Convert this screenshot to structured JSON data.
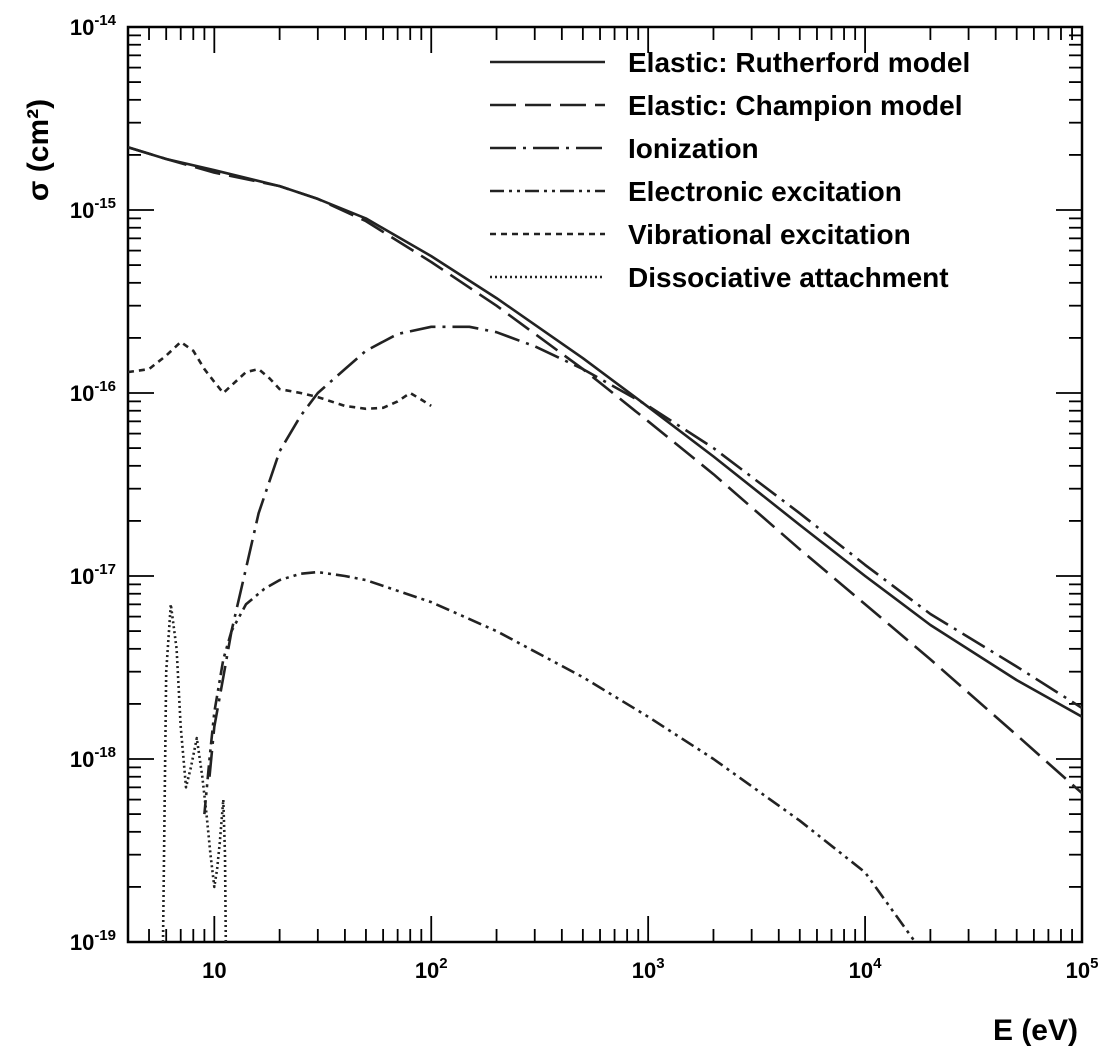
{
  "chart_data": {
    "type": "line",
    "title": "",
    "xlabel": "E (eV)",
    "ylabel": "σ (cm²)",
    "xscale": "log",
    "yscale": "log",
    "xlim": [
      4,
      100000
    ],
    "ylim": [
      1e-19,
      1e-14
    ],
    "grid": false,
    "legend_position": "top-right",
    "x_tick_labels": [
      {
        "value": 10,
        "base": "10",
        "exp": ""
      },
      {
        "value": 100,
        "base": "10",
        "exp": "2"
      },
      {
        "value": 1000,
        "base": "10",
        "exp": "3"
      },
      {
        "value": 10000,
        "base": "10",
        "exp": "4"
      },
      {
        "value": 100000,
        "base": "10",
        "exp": "5"
      }
    ],
    "y_tick_labels": [
      {
        "value": 1e-19,
        "base": "10",
        "exp": "-19"
      },
      {
        "value": 1e-18,
        "base": "10",
        "exp": "-18"
      },
      {
        "value": 1e-17,
        "base": "10",
        "exp": "-17"
      },
      {
        "value": 1e-16,
        "base": "10",
        "exp": "-16"
      },
      {
        "value": 1e-15,
        "base": "10",
        "exp": "-15"
      },
      {
        "value": 1e-14,
        "base": "10",
        "exp": "-14"
      }
    ],
    "series": [
      {
        "name": "Elastic: Rutherford model",
        "style": "solid",
        "x": [
          4,
          6,
          10,
          20,
          30,
          50,
          100,
          200,
          500,
          1000,
          2000,
          5000,
          10000,
          20000,
          50000,
          100000
        ],
        "y": [
          2.2e-15,
          1.9e-15,
          1.65e-15,
          1.35e-15,
          1.15e-15,
          9e-16,
          5.6e-16,
          3.3e-16,
          1.55e-16,
          8.4e-17,
          4.5e-17,
          1.9e-17,
          1e-17,
          5.4e-18,
          2.7e-18,
          1.7e-18
        ]
      },
      {
        "name": "Elastic: Champion model",
        "style": "long-dash",
        "x": [
          4,
          6,
          10,
          20,
          30,
          50,
          100,
          200,
          500,
          1000,
          2000,
          5000,
          10000,
          20000,
          50000,
          100000
        ],
        "y": [
          2.2e-15,
          1.9e-15,
          1.6e-15,
          1.35e-15,
          1.15e-15,
          8.7e-16,
          5.2e-16,
          3e-16,
          1.35e-16,
          7e-17,
          3.6e-17,
          1.4e-17,
          7e-18,
          3.5e-18,
          1.35e-18,
          6.5e-19
        ]
      },
      {
        "name": "Ionization",
        "style": "dash-dot",
        "x": [
          9.5,
          10,
          11,
          12,
          14,
          16,
          20,
          25,
          30,
          40,
          50,
          70,
          100,
          150,
          200,
          300,
          500,
          1000,
          2000,
          5000,
          10000,
          20000,
          50000,
          100000
        ],
        "y": [
          8e-19,
          1.5e-18,
          2.8e-18,
          5e-18,
          1.1e-17,
          2.2e-17,
          4.8e-17,
          7.5e-17,
          1e-16,
          1.35e-16,
          1.7e-16,
          2.1e-16,
          2.3e-16,
          2.3e-16,
          2.15e-16,
          1.8e-16,
          1.35e-16,
          8.5e-17,
          5e-17,
          2.2e-17,
          1.15e-17,
          6.2e-18,
          3.2e-18,
          1.9e-18
        ]
      },
      {
        "name": "Electronic excitation",
        "style": "dash-dot-dot",
        "x": [
          9,
          9.5,
          10,
          11,
          12,
          14,
          17,
          20,
          25,
          30,
          40,
          50,
          70,
          100,
          200,
          500,
          1000,
          2000,
          5000,
          10000,
          17000
        ],
        "y": [
          5e-19,
          1e-18,
          1.8e-18,
          3.5e-18,
          5e-18,
          7e-18,
          8.5e-18,
          9.5e-18,
          1.03e-17,
          1.05e-17,
          1e-17,
          9.5e-18,
          8.3e-18,
          7.2e-18,
          5e-18,
          2.8e-18,
          1.7e-18,
          1e-18,
          4.6e-19,
          2.4e-19,
          1e-19
        ]
      },
      {
        "name": "Vibrational excitation",
        "style": "short-dash",
        "x": [
          4,
          5,
          6,
          7,
          8,
          9,
          10,
          11,
          12,
          14,
          16,
          18,
          20,
          25,
          30,
          40,
          50,
          60,
          70,
          80,
          90,
          100
        ],
        "y": [
          1.3e-16,
          1.35e-16,
          1.6e-16,
          1.9e-16,
          1.7e-16,
          1.35e-16,
          1.15e-16,
          1e-16,
          1.1e-16,
          1.3e-16,
          1.35e-16,
          1.2e-16,
          1.05e-16,
          1e-16,
          9.5e-17,
          8.5e-17,
          8.2e-17,
          8.3e-17,
          9e-17,
          1e-16,
          9.2e-17,
          8.5e-17
        ]
      },
      {
        "name": "Dissociative attachment",
        "style": "dotted",
        "x": [
          5.8,
          6,
          6.3,
          6.7,
          7,
          7.4,
          7.8,
          8.3,
          8.8,
          9.2,
          9.6,
          10,
          10.3,
          10.6,
          11,
          11.2,
          11.3
        ],
        "y": [
          1e-19,
          3e-18,
          7e-18,
          4e-18,
          1.5e-18,
          7e-19,
          9e-19,
          1.3e-18,
          8e-19,
          5e-19,
          3e-19,
          2e-19,
          2.5e-19,
          3.5e-19,
          6e-19,
          3e-19,
          1e-19
        ]
      }
    ]
  }
}
